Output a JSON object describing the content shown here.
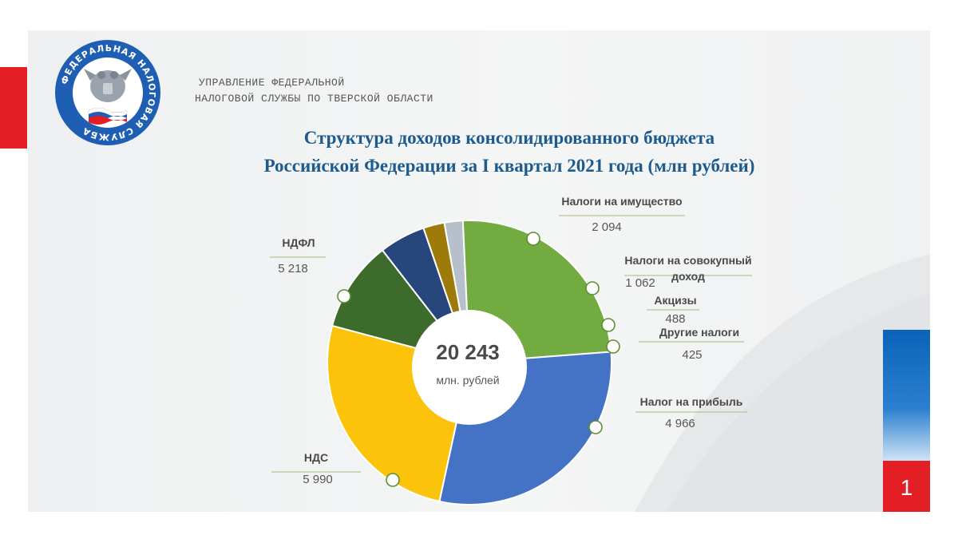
{
  "header": {
    "org_line1": "УПРАВЛЕНИЕ ФЕДЕРАЛЬНОЙ",
    "org_line2": "НАЛОГОВОЙ СЛУЖБЫ ПО ТВЕРСКОЙ ОБЛАСТИ",
    "logo_text": "ФЕДЕРАЛЬНАЯ НАЛОГОВАЯ СЛУЖБА",
    "page_number": "1"
  },
  "chart_data": {
    "type": "pie",
    "title_line1": "Структура доходов консолидированного бюджета",
    "title_line2": "Российской Федерации за I квартал 2021 года (млн рублей)",
    "center": {
      "value": "20 243",
      "unit": "млн. рублей"
    },
    "slices": [
      {
        "name": "Налоги на имущество",
        "value": 2094,
        "value_text": "2 094",
        "color": "#3d6b2c"
      },
      {
        "name": "Налоги на совокупный доход",
        "value": 1062,
        "value_text": "1 062",
        "color": "#26467c"
      },
      {
        "name": "Акцизы",
        "value": 488,
        "value_text": "488",
        "color": "#9e7a0b"
      },
      {
        "name": "Другие налоги",
        "value": 425,
        "value_text": "425",
        "color": "#b7c0ca"
      },
      {
        "name": "Налог на прибыль",
        "value": 4966,
        "value_text": "4 966",
        "color": "#72ab3f"
      },
      {
        "name": "НДС",
        "value": 5990,
        "value_text": "5 990",
        "color": "#4472c4"
      },
      {
        "name": "НДФЛ",
        "value": 5218,
        "value_text": "5 218",
        "color": "#fcc30b"
      }
    ]
  }
}
